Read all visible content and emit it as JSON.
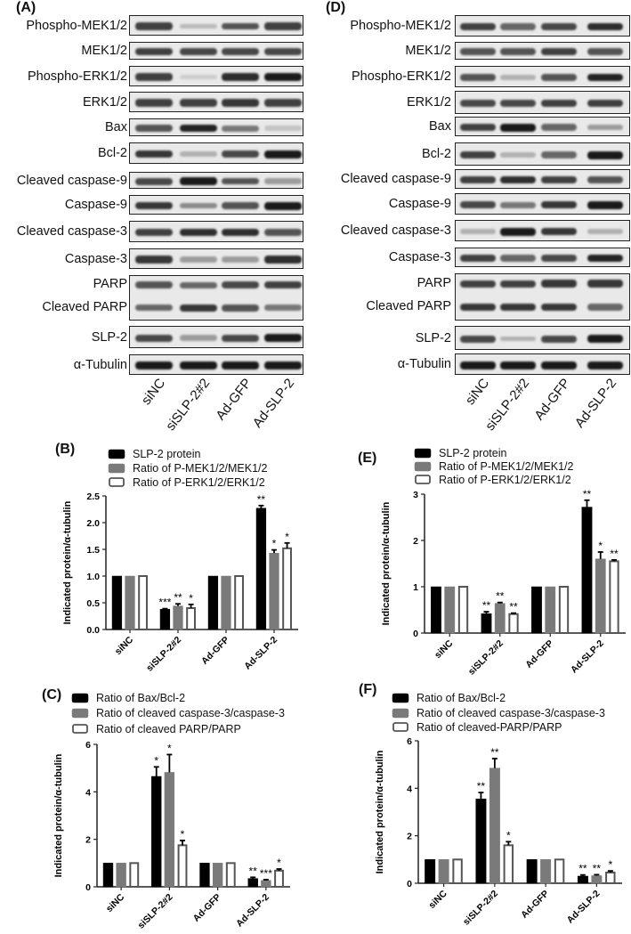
{
  "panels": {
    "A": "(A)",
    "D": "(D)",
    "B": "(B)",
    "E": "(E)",
    "C": "(C)",
    "F": "(F)"
  },
  "lanes": [
    "siNC",
    "siSLP-2#2",
    "Ad-GFP",
    "Ad-SLP-2"
  ],
  "colors": {
    "black_series": "#000000",
    "gray_series": "#7a7a7a",
    "open_series_stroke": "#555555",
    "blot_background": "#e9e9e9"
  },
  "blots": {
    "A": [
      {
        "rows": [
          {
            "label": "Phospho-MEK1/2",
            "band_intensity": [
              0.8,
              0.15,
              0.7,
              0.8
            ]
          }
        ]
      },
      {
        "rows": [
          {
            "label": "MEK1/2",
            "band_intensity": [
              0.8,
              0.75,
              0.75,
              0.75
            ]
          }
        ]
      },
      {
        "rows": [
          {
            "label": "Phospho-ERK1/2",
            "band_intensity": [
              0.8,
              0.05,
              0.9,
              1.0
            ]
          }
        ]
      },
      {
        "rows": [
          {
            "label": "ERK1/2",
            "band_intensity": [
              0.8,
              0.8,
              0.85,
              0.8
            ]
          }
        ]
      },
      {
        "rows": [
          {
            "label": "Bax",
            "band_intensity": [
              0.7,
              0.95,
              0.5,
              0.1
            ]
          }
        ]
      },
      {
        "rows": [
          {
            "label": "Bcl-2",
            "band_intensity": [
              0.85,
              0.2,
              0.75,
              1.0
            ]
          }
        ]
      },
      {
        "rows": [
          {
            "label": "Cleaved caspase-9",
            "band_intensity": [
              0.75,
              1.0,
              0.7,
              0.3
            ]
          }
        ]
      },
      {
        "rows": [
          {
            "label": "Caspase-9",
            "band_intensity": [
              0.85,
              0.4,
              0.7,
              1.0
            ]
          }
        ]
      },
      {
        "rows": [
          {
            "label": "Cleaved caspase-3",
            "band_intensity": [
              0.8,
              0.9,
              0.9,
              0.7
            ]
          }
        ]
      },
      {
        "rows": [
          {
            "label": "Caspase-3",
            "band_intensity": [
              0.85,
              0.3,
              0.3,
              0.9
            ]
          }
        ]
      },
      {
        "rows": [
          {
            "label": "PARP",
            "band_intensity": [
              0.7,
              0.6,
              0.75,
              0.8
            ]
          },
          {
            "label": "Cleaved PARP",
            "band_intensity": [
              0.6,
              0.85,
              0.7,
              0.5
            ]
          }
        ]
      },
      {
        "rows": [
          {
            "label": "SLP-2",
            "band_intensity": [
              0.75,
              0.3,
              0.75,
              1.0
            ]
          }
        ]
      },
      {
        "rows": [
          {
            "label": "α-Tubulin",
            "band_intensity": [
              1.0,
              1.0,
              1.0,
              1.0
            ]
          }
        ]
      }
    ],
    "D": [
      {
        "rows": [
          {
            "label": "Phospho-MEK1/2",
            "band_intensity": [
              0.8,
              0.6,
              0.75,
              0.9
            ]
          }
        ]
      },
      {
        "rows": [
          {
            "label": "MEK1/2",
            "band_intensity": [
              0.7,
              0.7,
              0.8,
              0.7
            ]
          }
        ]
      },
      {
        "rows": [
          {
            "label": "Phospho-ERK1/2",
            "band_intensity": [
              0.7,
              0.2,
              0.7,
              0.95
            ]
          }
        ]
      },
      {
        "rows": [
          {
            "label": "ERK1/2",
            "band_intensity": [
              0.75,
              0.75,
              0.8,
              0.8
            ]
          }
        ]
      },
      {
        "rows": [
          {
            "label": "Bax",
            "band_intensity": [
              0.8,
              1.0,
              0.6,
              0.3
            ]
          }
        ]
      },
      {
        "rows": [
          {
            "label": "Bcl-2",
            "band_intensity": [
              0.8,
              0.2,
              0.6,
              1.0
            ]
          }
        ]
      },
      {
        "rows": [
          {
            "label": "Cleaved caspase-9",
            "band_intensity": [
              0.8,
              0.9,
              0.8,
              0.7
            ]
          }
        ]
      },
      {
        "rows": [
          {
            "label": "Caspase-9",
            "band_intensity": [
              0.75,
              0.5,
              0.85,
              1.0
            ]
          }
        ]
      },
      {
        "rows": [
          {
            "label": "Cleaved caspase-3",
            "band_intensity": [
              0.2,
              1.0,
              0.85,
              0.2
            ]
          }
        ]
      },
      {
        "rows": [
          {
            "label": "Caspase-3",
            "band_intensity": [
              0.8,
              0.6,
              0.75,
              0.95
            ]
          }
        ]
      },
      {
        "rows": [
          {
            "label": "PARP",
            "band_intensity": [
              0.8,
              0.8,
              0.85,
              0.85
            ]
          },
          {
            "label": "Cleaved PARP",
            "band_intensity": [
              0.85,
              0.85,
              0.85,
              0.6
            ]
          }
        ]
      },
      {
        "rows": [
          {
            "label": "SLP-2",
            "band_intensity": [
              0.75,
              0.2,
              0.75,
              1.0
            ]
          }
        ]
      },
      {
        "rows": [
          {
            "label": "α-Tubulin",
            "band_intensity": [
              1.0,
              1.0,
              1.0,
              1.0
            ]
          }
        ]
      }
    ]
  },
  "chart_data": [
    {
      "panel": "(B)",
      "type": "bar",
      "categories": [
        "siNC",
        "siSLP-2#2",
        "Ad-GFP",
        "Ad-SLP-2"
      ],
      "ylabel": "Indicated protein/α-tubulin",
      "xlabel": "",
      "ylim": [
        0,
        2.5
      ],
      "yticks": [
        "0.0",
        "0.5",
        "1.0",
        "1.5",
        "2.0",
        "2.5"
      ],
      "ytick_values": [
        0,
        0.5,
        1,
        1.5,
        2,
        2.5
      ],
      "legend": "top",
      "series": [
        {
          "name": "SLP-2 protein",
          "style": "black",
          "values": [
            1,
            0.38,
            1,
            2.27
          ],
          "errors": [
            0,
            0.01,
            0,
            0.05
          ],
          "significance": [
            "",
            "***",
            "",
            "**"
          ]
        },
        {
          "name": "Ratio of P-MEK1/2/MEK1/2",
          "style": "gray",
          "values": [
            1,
            0.44,
            1,
            1.43
          ],
          "errors": [
            0,
            0.04,
            0,
            0.06
          ],
          "significance": [
            "",
            "**",
            "",
            "*"
          ]
        },
        {
          "name": "Ratio of P-ERK1/2/ERK1/2",
          "style": "open",
          "values": [
            1,
            0.4,
            1,
            1.52
          ],
          "errors": [
            0,
            0.07,
            0,
            0.1
          ],
          "significance": [
            "",
            "*",
            "",
            "*"
          ]
        }
      ]
    },
    {
      "panel": "(E)",
      "type": "bar",
      "categories": [
        "siNC",
        "siSLP-2#2",
        "Ad-GFP",
        "Ad-SLP-2"
      ],
      "ylabel": "Indicated protein/α-tubulin",
      "xlabel": "",
      "ylim": [
        0,
        3
      ],
      "yticks": [
        "0",
        "1",
        "2",
        "3"
      ],
      "ytick_values": [
        0,
        1,
        2,
        3
      ],
      "legend": "top",
      "series": [
        {
          "name": "SLP-2 protein",
          "style": "black",
          "values": [
            1,
            0.42,
            1,
            2.72
          ],
          "errors": [
            0,
            0.04,
            0,
            0.15
          ],
          "significance": [
            "",
            "**",
            "",
            "**"
          ]
        },
        {
          "name": "Ratio of P-MEK1/2/MEK1/2",
          "style": "gray",
          "values": [
            1,
            0.64,
            1,
            1.6
          ],
          "errors": [
            0,
            0.02,
            0,
            0.15
          ],
          "significance": [
            "",
            "**",
            "",
            "*"
          ]
        },
        {
          "name": "Ratio of P-ERK1/2/ERK1/2",
          "style": "open",
          "values": [
            1,
            0.41,
            1,
            1.55
          ],
          "errors": [
            0,
            0.02,
            0,
            0.03
          ],
          "significance": [
            "",
            "**",
            "",
            "**"
          ]
        }
      ]
    },
    {
      "panel": "(C)",
      "type": "bar",
      "categories": [
        "siNC",
        "siSLP-2#2",
        "Ad-GFP",
        "Ad-SLP-2"
      ],
      "ylabel": "Indicated protein/α-tubulin",
      "xlabel": "",
      "ylim": [
        0,
        6
      ],
      "yticks": [
        "0",
        "2",
        "4",
        "6"
      ],
      "ytick_values": [
        0,
        2,
        4,
        6
      ],
      "legend": "top",
      "series": [
        {
          "name": "Ratio of Bax/Bcl-2",
          "style": "black",
          "values": [
            1,
            4.65,
            1,
            0.35
          ],
          "errors": [
            0,
            0.4,
            0,
            0.05
          ],
          "significance": [
            "",
            "*",
            "",
            "**"
          ]
        },
        {
          "name": "Ratio of cleaved caspase-3/caspase-3",
          "style": "gray",
          "values": [
            1,
            4.82,
            1,
            0.27
          ],
          "errors": [
            0,
            0.75,
            0,
            0.03
          ],
          "significance": [
            "",
            "*",
            "",
            "***"
          ]
        },
        {
          "name": "Ratio of cleaved PARP/PARP",
          "style": "open",
          "values": [
            1,
            1.75,
            1,
            0.68
          ],
          "errors": [
            0,
            0.2,
            0,
            0.07
          ],
          "significance": [
            "",
            "*",
            "",
            "*"
          ]
        }
      ]
    },
    {
      "panel": "(F)",
      "type": "bar",
      "categories": [
        "siNC",
        "siSLP-2#2",
        "Ad-GFP",
        "Ad-SLP-2"
      ],
      "ylabel": "Indicated protein/α-tubulin",
      "xlabel": "",
      "ylim": [
        0,
        6
      ],
      "yticks": [
        "0",
        "2",
        "4",
        "6"
      ],
      "ytick_values": [
        0,
        2,
        4,
        6
      ],
      "legend": "top",
      "series": [
        {
          "name": "Ratio of Bax/Bcl-2",
          "style": "black",
          "values": [
            1,
            3.55,
            1,
            0.3
          ],
          "errors": [
            0,
            0.27,
            0,
            0.05
          ],
          "significance": [
            "",
            "**",
            "",
            "**"
          ]
        },
        {
          "name": "Ratio of cleaved caspase-3/caspase-3",
          "style": "gray",
          "values": [
            1,
            4.85,
            1,
            0.32
          ],
          "errors": [
            0,
            0.4,
            0,
            0.04
          ],
          "significance": [
            "",
            "**",
            "",
            "**"
          ]
        },
        {
          "name": "Ratio of cleaved-PARP/PARP",
          "style": "open",
          "values": [
            1,
            1.6,
            1,
            0.45
          ],
          "errors": [
            0,
            0.15,
            0,
            0.07
          ],
          "significance": [
            "",
            "*",
            "",
            "*"
          ]
        }
      ]
    }
  ]
}
